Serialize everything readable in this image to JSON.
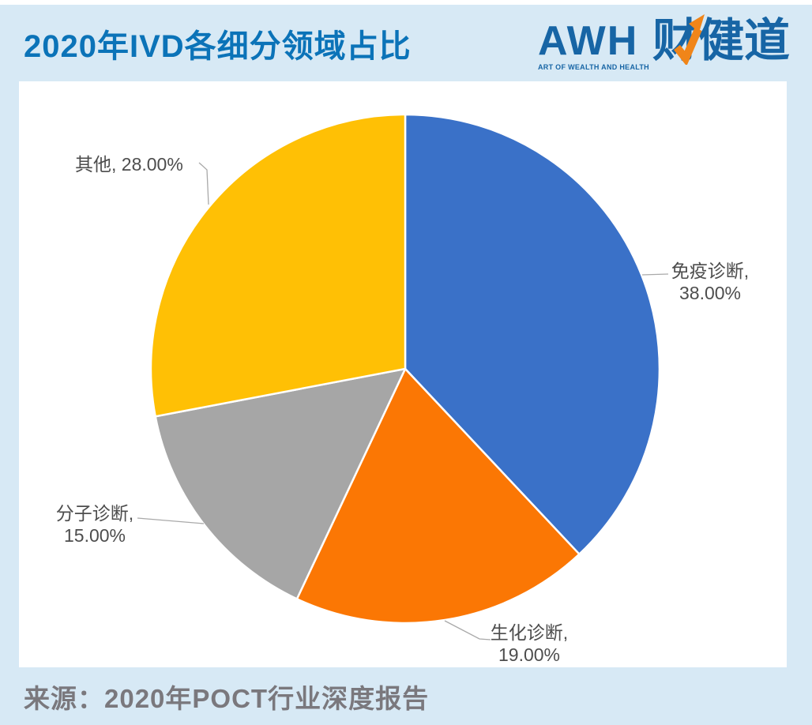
{
  "page": {
    "title": "2020年IVD各细分领域占比",
    "source": "来源：2020年POCT行业深度报告"
  },
  "logo": {
    "brand_latin": "AWH",
    "tagline": "ART OF WEALTH AND HEALTH",
    "brand_cn": "财健道",
    "arrow_icon_color": "#F08519"
  },
  "chart_data": {
    "type": "pie",
    "title": "2020年IVD各细分领域占比",
    "categories": [
      "免疫诊断",
      "生化诊断",
      "分子诊断",
      "其他"
    ],
    "values": [
      38,
      19,
      15,
      28
    ],
    "unit": "%",
    "labels": [
      "免疫诊断, 38.00%",
      "生化诊断, 19.00%",
      "分子诊断, 15.00%",
      "其他, 28.00%"
    ],
    "colors": [
      "#3A71C8",
      "#FB7704",
      "#A6A6A6",
      "#FFC005"
    ],
    "start_angle_deg": -90,
    "direction": "clockwise",
    "legend": "none",
    "label_style": "outside-with-leader-lines",
    "source": "来源：2020年POCT行业深度报告"
  },
  "colors": {
    "background": "#D7E9F5",
    "panel": "#FFFFFF",
    "title_text": "#0B73B8",
    "logo_blue": "#1765A5",
    "logo_orange": "#F08519",
    "label_text": "#4D4D4D",
    "source_text": "#7A787D",
    "leader_line": "#A9A9A9"
  }
}
